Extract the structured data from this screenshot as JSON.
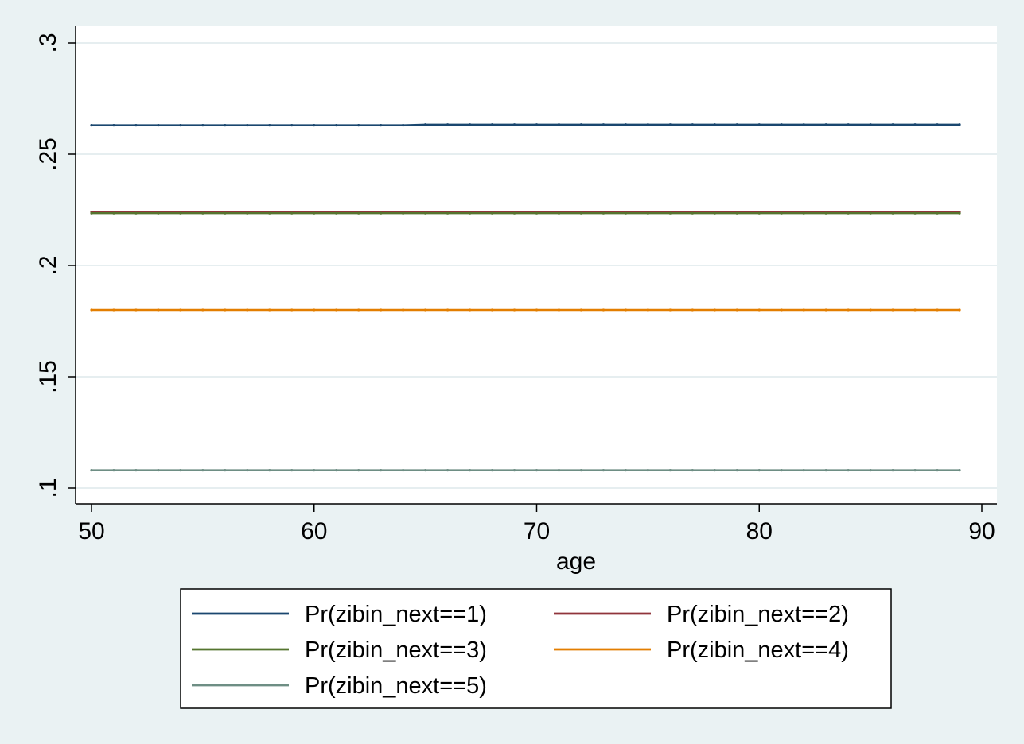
{
  "chart_data": {
    "type": "line",
    "title": "",
    "xlabel": "age",
    "ylabel": "",
    "xlim": [
      50,
      90
    ],
    "ylim": [
      0.1,
      0.3
    ],
    "x_ticks": [
      50,
      60,
      70,
      80,
      90
    ],
    "x_tick_labels": [
      "50",
      "60",
      "70",
      "80",
      "90"
    ],
    "y_ticks": [
      0.1,
      0.15,
      0.2,
      0.25,
      0.3
    ],
    "y_tick_labels": [
      ".1",
      ".15",
      ".2",
      ".25",
      ".3"
    ],
    "grid": "horizontal",
    "legend_position": "bottom",
    "x": [
      50,
      51,
      52,
      53,
      54,
      55,
      56,
      57,
      58,
      59,
      60,
      61,
      62,
      63,
      64,
      65,
      66,
      67,
      68,
      69,
      70,
      71,
      72,
      73,
      74,
      75,
      76,
      77,
      78,
      79,
      80,
      81,
      82,
      83,
      84,
      85,
      86,
      87,
      88,
      89
    ],
    "series": [
      {
        "name": "Pr(zibin_next==1)",
        "color": "#1a476f",
        "values": [
          0.263,
          0.263,
          0.263,
          0.263,
          0.263,
          0.263,
          0.263,
          0.263,
          0.263,
          0.263,
          0.263,
          0.263,
          0.263,
          0.263,
          0.263,
          0.2633,
          0.2633,
          0.2633,
          0.2633,
          0.2633,
          0.2633,
          0.2633,
          0.2633,
          0.2633,
          0.2633,
          0.2633,
          0.2633,
          0.2633,
          0.2633,
          0.2633,
          0.2633,
          0.2633,
          0.2633,
          0.2633,
          0.2633,
          0.2633,
          0.2633,
          0.2633,
          0.2633,
          0.2633
        ]
      },
      {
        "name": "Pr(zibin_next==2)",
        "color": "#90353b",
        "values": [
          0.224,
          0.224,
          0.224,
          0.224,
          0.224,
          0.224,
          0.224,
          0.224,
          0.224,
          0.224,
          0.224,
          0.224,
          0.224,
          0.224,
          0.224,
          0.224,
          0.224,
          0.224,
          0.224,
          0.224,
          0.224,
          0.224,
          0.224,
          0.224,
          0.224,
          0.224,
          0.224,
          0.224,
          0.224,
          0.224,
          0.224,
          0.224,
          0.224,
          0.224,
          0.224,
          0.224,
          0.224,
          0.224,
          0.224,
          0.224
        ]
      },
      {
        "name": "Pr(zibin_next==3)",
        "color": "#55752f",
        "values": [
          0.2235,
          0.2235,
          0.2235,
          0.2235,
          0.2235,
          0.2235,
          0.2235,
          0.2235,
          0.2235,
          0.2235,
          0.2235,
          0.2235,
          0.2235,
          0.2235,
          0.2235,
          0.2235,
          0.2235,
          0.2235,
          0.2235,
          0.2235,
          0.2235,
          0.2235,
          0.2235,
          0.2235,
          0.2235,
          0.2235,
          0.2235,
          0.2235,
          0.2235,
          0.2235,
          0.2235,
          0.2235,
          0.2235,
          0.2235,
          0.2235,
          0.2235,
          0.2235,
          0.2235,
          0.2235,
          0.2235
        ]
      },
      {
        "name": "Pr(zibin_next==4)",
        "color": "#e37e00",
        "values": [
          0.18,
          0.18,
          0.18,
          0.18,
          0.18,
          0.18,
          0.18,
          0.18,
          0.18,
          0.18,
          0.18,
          0.18,
          0.18,
          0.18,
          0.18,
          0.18,
          0.18,
          0.18,
          0.18,
          0.18,
          0.18,
          0.18,
          0.18,
          0.18,
          0.18,
          0.18,
          0.18,
          0.18,
          0.18,
          0.18,
          0.18,
          0.18,
          0.18,
          0.18,
          0.18,
          0.18,
          0.18,
          0.18,
          0.18,
          0.18
        ]
      },
      {
        "name": "Pr(zibin_next==5)",
        "color": "#6e8e84",
        "values": [
          0.108,
          0.108,
          0.108,
          0.108,
          0.108,
          0.108,
          0.108,
          0.108,
          0.108,
          0.108,
          0.108,
          0.108,
          0.108,
          0.108,
          0.108,
          0.108,
          0.108,
          0.108,
          0.108,
          0.108,
          0.108,
          0.108,
          0.108,
          0.108,
          0.108,
          0.108,
          0.108,
          0.108,
          0.108,
          0.108,
          0.108,
          0.108,
          0.108,
          0.108,
          0.108,
          0.108,
          0.108,
          0.108,
          0.108,
          0.108
        ]
      }
    ]
  }
}
